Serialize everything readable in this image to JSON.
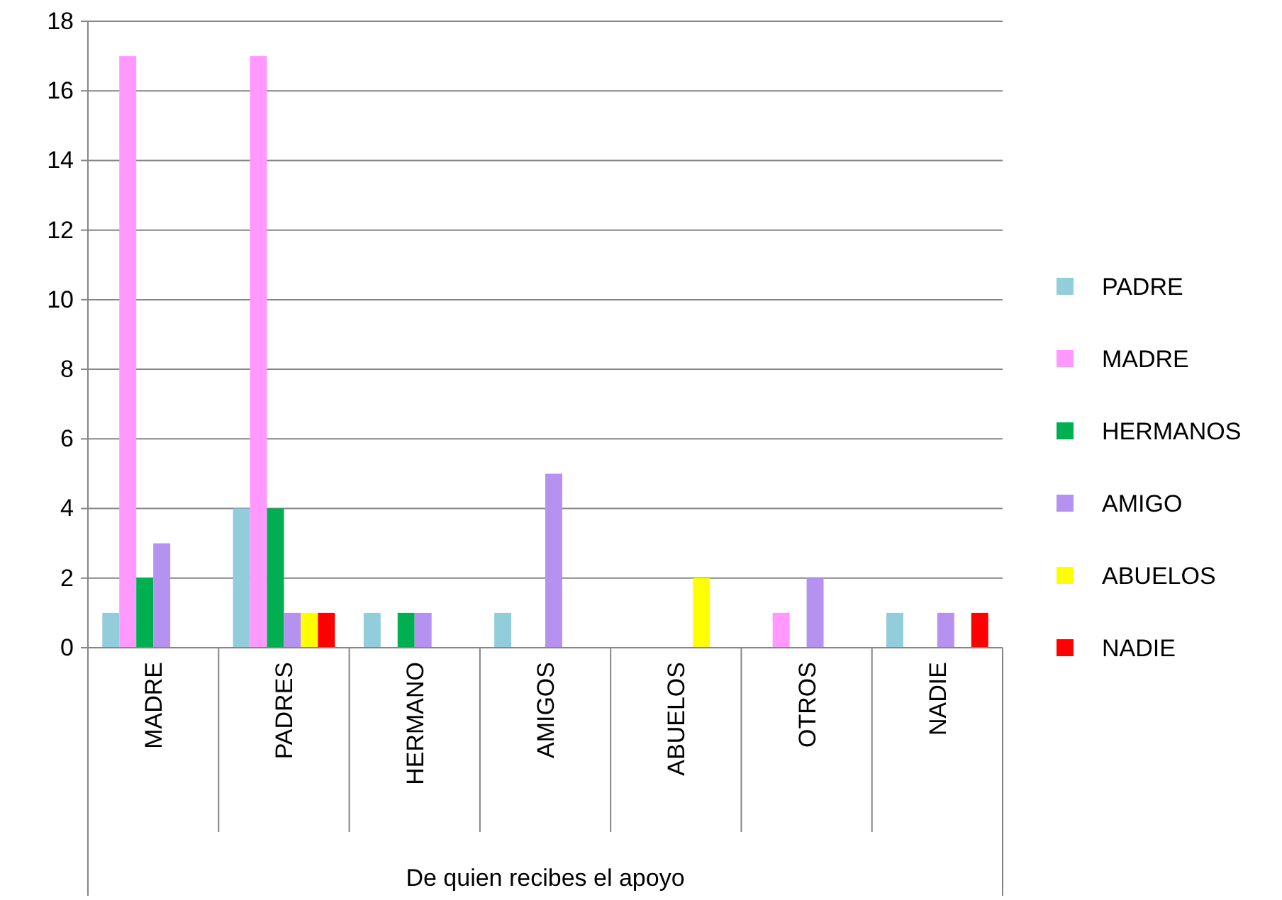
{
  "chart_data": {
    "type": "bar",
    "xlabel": "De quien recibes el apoyo",
    "categories": [
      "MADRE",
      "PADRES",
      "HERMANO",
      "AMIGOS",
      "ABUELOS",
      "OTROS",
      "NADIE"
    ],
    "series": [
      {
        "name": "PADRE",
        "color": "#92cddc",
        "values": [
          1,
          4,
          1,
          1,
          0,
          0,
          1
        ]
      },
      {
        "name": "MADRE",
        "color": "#ff99ff",
        "values": [
          17,
          17,
          0,
          0,
          0,
          1,
          0
        ]
      },
      {
        "name": "HERMANOS",
        "color": "#00b050",
        "values": [
          2,
          4,
          1,
          0,
          0,
          0,
          0
        ]
      },
      {
        "name": "AMIGO",
        "color": "#b692f0",
        "values": [
          3,
          1,
          1,
          5,
          0,
          2,
          1
        ]
      },
      {
        "name": "ABUELOS",
        "color": "#ffff00",
        "values": [
          0,
          1,
          0,
          0,
          2,
          0,
          0
        ]
      },
      {
        "name": "NADIE",
        "color": "#ff0000",
        "values": [
          0,
          1,
          0,
          0,
          0,
          0,
          1
        ]
      }
    ],
    "ylim": [
      0,
      18
    ],
    "yticks": [
      0,
      2,
      4,
      6,
      8,
      10,
      12,
      14,
      16,
      18
    ],
    "grid": "y",
    "legend": "right"
  }
}
